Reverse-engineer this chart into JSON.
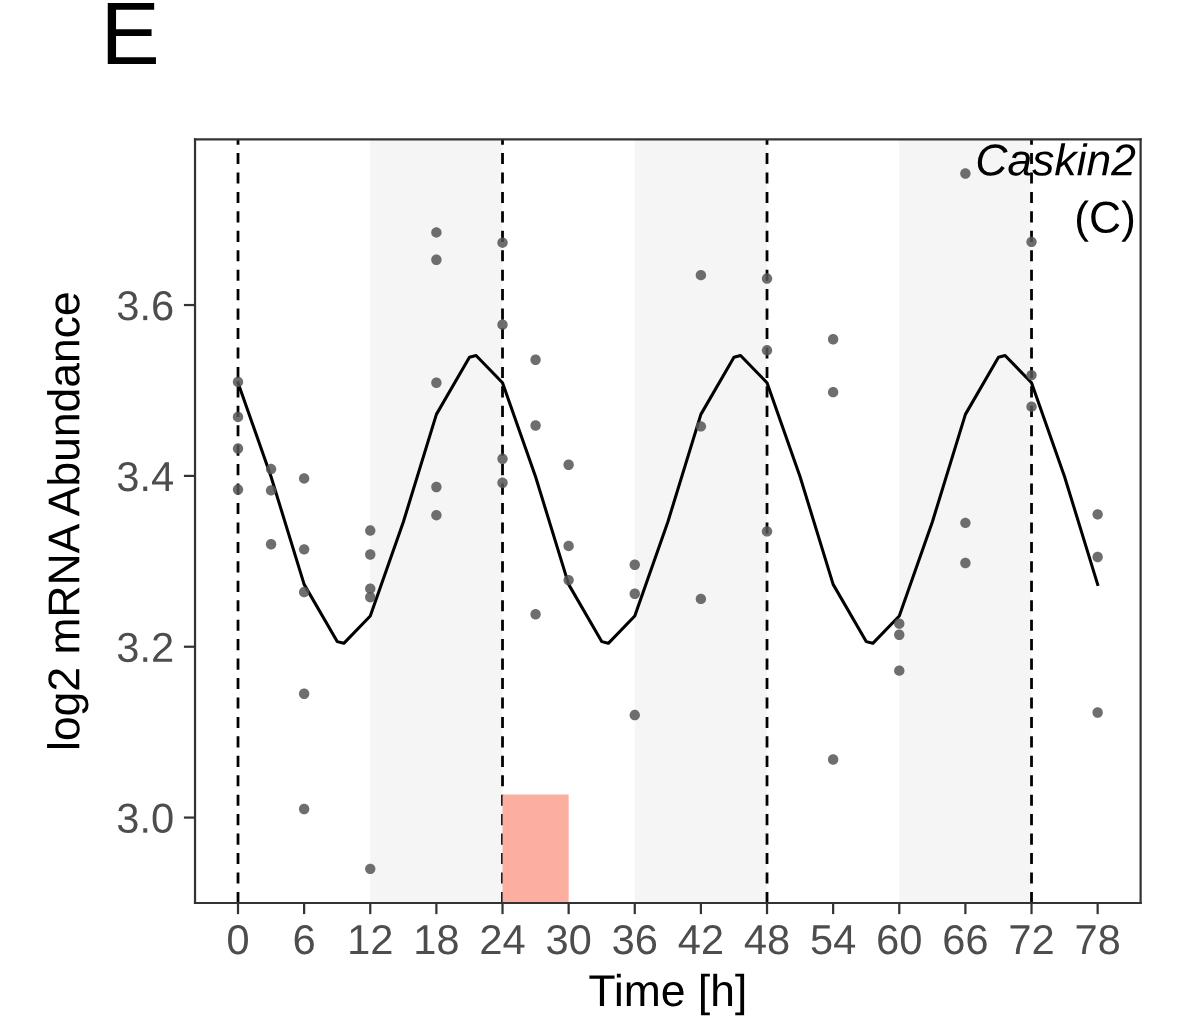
{
  "chart_data": {
    "type": "scatter",
    "title": "E",
    "xlabel": "Time [h]",
    "ylabel": "log2 mRNA Abundance",
    "annotations": [
      "Caskin2",
      "(C)"
    ],
    "xlim": [
      -3.9,
      81.9
    ],
    "ylim": [
      2.9,
      3.794
    ],
    "xticks": [
      0,
      6,
      12,
      18,
      24,
      30,
      36,
      42,
      48,
      54,
      60,
      66,
      72,
      78
    ],
    "yticks": [
      {
        "value": 3.0,
        "label": "3.0"
      },
      {
        "value": 3.2,
        "label": "3.2"
      },
      {
        "value": 3.4,
        "label": "3.4"
      },
      {
        "value": 3.6,
        "label": "3.6"
      }
    ],
    "grid": false,
    "legend": false,
    "bands": [
      {
        "axis": "x",
        "from": 12,
        "to": 24,
        "color": "#f5f5f5"
      },
      {
        "axis": "x",
        "from": 36,
        "to": 48,
        "color": "#f5f5f5"
      },
      {
        "axis": "x",
        "from": 60,
        "to": 72,
        "color": "#f5f5f5"
      }
    ],
    "ref_lines": [
      {
        "axis": "x",
        "value": 0,
        "line_style": "dashed",
        "color": "#000000"
      },
      {
        "axis": "x",
        "value": 24,
        "line_style": "dashed",
        "color": "#000000"
      },
      {
        "axis": "x",
        "value": 48,
        "line_style": "dashed",
        "color": "#000000"
      },
      {
        "axis": "x",
        "value": 72,
        "line_style": "dashed",
        "color": "#000000"
      }
    ],
    "series": [
      {
        "type": "bar",
        "color": "#fcaea0",
        "x": [
          27
        ],
        "base": [
          2.9
        ],
        "values": [
          0.127
        ]
      },
      {
        "color": "#555555",
        "marker": "circle",
        "x": [
          0,
          0,
          0,
          0,
          3,
          3,
          3,
          6,
          6,
          6,
          6,
          6,
          12,
          12,
          12,
          12,
          12,
          18,
          18,
          18,
          18,
          18,
          24,
          24,
          24,
          24,
          27,
          27,
          27,
          30,
          30,
          30,
          36,
          36,
          36,
          42,
          42,
          42,
          48,
          48,
          48,
          54,
          54,
          54,
          60,
          60,
          60,
          66,
          66,
          66,
          72,
          72,
          72,
          78,
          78,
          78
        ],
        "values": [
          3.51,
          3.469,
          3.432,
          3.384,
          3.408,
          3.383,
          3.32,
          3.397,
          3.314,
          3.264,
          3.145,
          3.01,
          3.336,
          3.308,
          3.268,
          3.258,
          2.94,
          3.685,
          3.653,
          3.509,
          3.387,
          3.354,
          3.673,
          3.577,
          3.42,
          3.392,
          3.536,
          3.459,
          3.238,
          3.413,
          3.318,
          3.278,
          3.296,
          3.262,
          3.12,
          3.635,
          3.458,
          3.256,
          3.631,
          3.547,
          3.335,
          3.56,
          3.498,
          3.068,
          3.227,
          3.214,
          3.172,
          3.754,
          3.345,
          3.298,
          3.674,
          3.518,
          3.481,
          3.355,
          3.305,
          3.123
        ]
      },
      {
        "type": "line",
        "color": "#000000",
        "marker": "none",
        "line_style": "solid",
        "x": [
          0,
          3,
          6,
          9,
          9.6,
          12,
          15,
          18,
          21,
          21.6,
          24,
          27,
          30,
          33,
          33.6,
          36,
          39,
          42,
          45,
          45.6,
          48,
          51,
          54,
          57,
          57.6,
          60,
          63,
          66,
          69,
          69.6,
          72,
          75,
          78
        ],
        "values": [
          3.509,
          3.399,
          3.273,
          3.206,
          3.204,
          3.236,
          3.346,
          3.472,
          3.539,
          3.541,
          3.509,
          3.399,
          3.273,
          3.206,
          3.204,
          3.236,
          3.346,
          3.472,
          3.539,
          3.541,
          3.509,
          3.399,
          3.273,
          3.206,
          3.204,
          3.236,
          3.346,
          3.472,
          3.539,
          3.541,
          3.509,
          3.399,
          3.273
        ]
      }
    ]
  }
}
